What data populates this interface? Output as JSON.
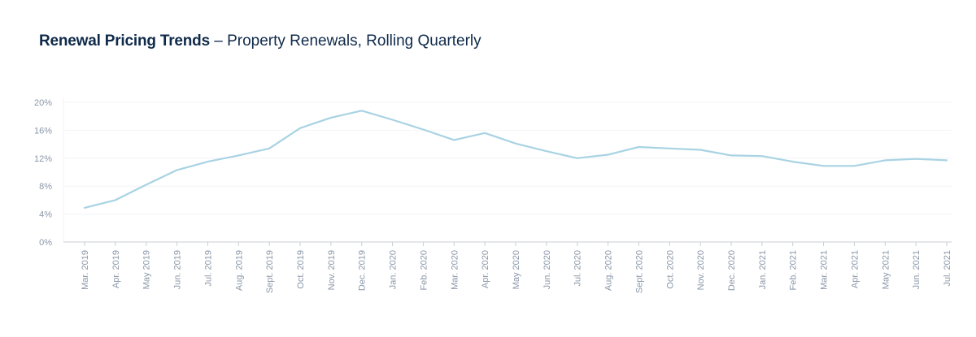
{
  "header": {
    "title": "Renewal Pricing Trends",
    "separator": " – ",
    "subtitle": "Property Renewals, Rolling Quarterly"
  },
  "colors": {
    "line": "#a8d3e3",
    "grid": "#f2f4f6",
    "axis": "#c8ced6",
    "tick_text": "#8a97a8",
    "title": "#0f2a4a"
  },
  "chart_data": {
    "type": "line",
    "title": "Renewal Pricing Trends – Property Renewals, Rolling Quarterly",
    "xlabel": "",
    "ylabel": "",
    "ylim": [
      0,
      20
    ],
    "yticks": [
      0,
      4,
      8,
      12,
      16,
      20
    ],
    "ytick_labels": [
      "0%",
      "4%",
      "8%",
      "12%",
      "16%",
      "20%"
    ],
    "grid": true,
    "categories": [
      "Mar. 2019",
      "Apr. 2019",
      "May 2019",
      "Jun. 2019",
      "Jul. 2019",
      "Aug. 2019",
      "Sept. 2019",
      "Oct. 2019",
      "Nov. 2019",
      "Dec. 2019",
      "Jan. 2020",
      "Feb. 2020",
      "Mar. 2020",
      "Apr. 2020",
      "May 2020",
      "Jun. 2020",
      "Jul. 2020",
      "Aug. 2020",
      "Sept. 2020",
      "Oct. 2020",
      "Nov. 2020",
      "Dec. 2020",
      "Jan. 2021",
      "Feb. 2021",
      "Mar. 2021",
      "Apr. 2021",
      "May 2021",
      "Jun. 2021",
      "Jul. 2021"
    ],
    "series": [
      {
        "name": "Property Renewals",
        "values": [
          4.9,
          6.0,
          8.2,
          10.3,
          11.5,
          12.4,
          13.4,
          16.3,
          17.8,
          18.8,
          17.5,
          16.1,
          14.6,
          15.6,
          14.1,
          13.0,
          12.0,
          12.5,
          13.6,
          13.4,
          13.2,
          12.4,
          12.3,
          11.5,
          10.9,
          10.9,
          11.7,
          11.9,
          11.7
        ]
      }
    ]
  }
}
